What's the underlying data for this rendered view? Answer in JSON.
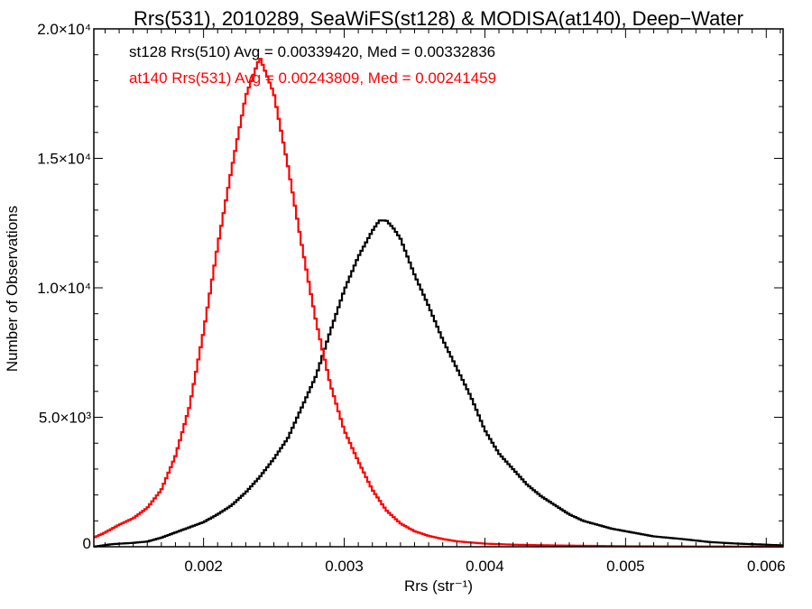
{
  "chart_data": {
    "type": "line",
    "title": "Rrs(531), 2010289, SeaWiFS(st128) & MODISA(at140), Deep−Water",
    "xlabel": "Rrs (str⁻¹)",
    "ylabel": "Number of Observations",
    "xlim": [
      0.00122,
      0.00612
    ],
    "ylim": [
      0,
      20000
    ],
    "grid": false,
    "x_ticks": [
      {
        "value": 0.002,
        "label": "0.002"
      },
      {
        "value": 0.003,
        "label": "0.003"
      },
      {
        "value": 0.004,
        "label": "0.004"
      },
      {
        "value": 0.005,
        "label": "0.005"
      },
      {
        "value": 0.006,
        "label": "0.006"
      }
    ],
    "y_ticks": [
      {
        "value": 0,
        "label": "0"
      },
      {
        "value": 5000,
        "label": "5.0×10³"
      },
      {
        "value": 10000,
        "label": "1.0×10⁴"
      },
      {
        "value": 15000,
        "label": "1.5×10⁴"
      },
      {
        "value": 20000,
        "label": "2.0×10⁴"
      }
    ],
    "annotations": [
      {
        "text": "st128 Rrs(510) Avg = 0.00339420, Med = 0.00332836",
        "color": "#000000"
      },
      {
        "text": "at140 Rrs(531) Avg = 0.00243809, Med = 0.00241459",
        "color": "#ff0000"
      }
    ],
    "series": [
      {
        "color": "#000000",
        "step": true,
        "points": [
          [
            0.00122,
            0
          ],
          [
            0.00135,
            100
          ],
          [
            0.0015,
            150
          ],
          [
            0.0016,
            200
          ],
          [
            0.0017,
            350
          ],
          [
            0.0018,
            550
          ],
          [
            0.0019,
            750
          ],
          [
            0.002,
            950
          ],
          [
            0.0021,
            1250
          ],
          [
            0.0022,
            1600
          ],
          [
            0.0023,
            2100
          ],
          [
            0.0024,
            2700
          ],
          [
            0.0025,
            3400
          ],
          [
            0.0026,
            4200
          ],
          [
            0.0027,
            5400
          ],
          [
            0.0028,
            6600
          ],
          [
            0.0029,
            8300
          ],
          [
            0.003,
            9900
          ],
          [
            0.0031,
            11200
          ],
          [
            0.0032,
            12200
          ],
          [
            0.00325,
            12600
          ],
          [
            0.0033,
            12600
          ],
          [
            0.00335,
            12300
          ],
          [
            0.0034,
            11900
          ],
          [
            0.0035,
            10500
          ],
          [
            0.0036,
            9300
          ],
          [
            0.0037,
            8000
          ],
          [
            0.0038,
            6900
          ],
          [
            0.0039,
            5800
          ],
          [
            0.004,
            4500
          ],
          [
            0.0041,
            3600
          ],
          [
            0.0042,
            3000
          ],
          [
            0.0043,
            2400
          ],
          [
            0.0044,
            1950
          ],
          [
            0.0045,
            1600
          ],
          [
            0.0046,
            1250
          ],
          [
            0.0047,
            1000
          ],
          [
            0.0048,
            850
          ],
          [
            0.0049,
            700
          ],
          [
            0.005,
            600
          ],
          [
            0.0052,
            400
          ],
          [
            0.0054,
            300
          ],
          [
            0.0056,
            180
          ],
          [
            0.0058,
            120
          ],
          [
            0.006,
            80
          ],
          [
            0.00612,
            50
          ]
        ]
      },
      {
        "color": "#ff0000",
        "step": true,
        "points": [
          [
            0.00122,
            350
          ],
          [
            0.0013,
            550
          ],
          [
            0.0014,
            850
          ],
          [
            0.0015,
            1100
          ],
          [
            0.0016,
            1500
          ],
          [
            0.0017,
            2200
          ],
          [
            0.0018,
            3500
          ],
          [
            0.0019,
            5400
          ],
          [
            0.002,
            8300
          ],
          [
            0.0021,
            11600
          ],
          [
            0.0022,
            14600
          ],
          [
            0.0023,
            17400
          ],
          [
            0.0024,
            18900
          ],
          [
            0.0025,
            17500
          ],
          [
            0.0026,
            14700
          ],
          [
            0.0027,
            11600
          ],
          [
            0.0028,
            8700
          ],
          [
            0.0029,
            6300
          ],
          [
            0.003,
            4500
          ],
          [
            0.0031,
            3300
          ],
          [
            0.0032,
            2200
          ],
          [
            0.0033,
            1400
          ],
          [
            0.0034,
            900
          ],
          [
            0.0035,
            600
          ],
          [
            0.0036,
            420
          ],
          [
            0.0037,
            300
          ],
          [
            0.0038,
            210
          ],
          [
            0.004,
            120
          ],
          [
            0.0042,
            80
          ],
          [
            0.0045,
            50
          ],
          [
            0.005,
            20
          ],
          [
            0.0055,
            10
          ],
          [
            0.006,
            5
          ],
          [
            0.00612,
            0
          ]
        ]
      }
    ]
  }
}
